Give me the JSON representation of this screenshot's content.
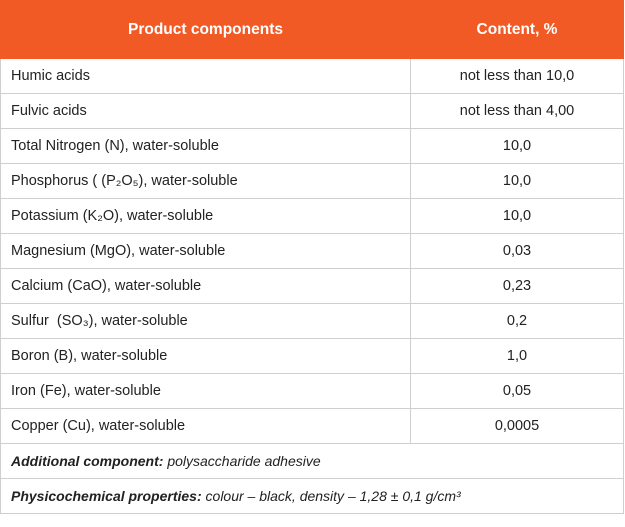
{
  "table": {
    "header": [
      "Product components",
      "Content, %"
    ],
    "rows": [
      [
        "Humic acids",
        "not less than 10,0"
      ],
      [
        "Fulvic acids",
        "not less than 4,00"
      ],
      [
        "Total Nitrogen (N), water-soluble",
        "10,0"
      ],
      [
        "Phosphorus ( (P₂O₅), water-soluble",
        "10,0"
      ],
      [
        "Potassium (K₂O), water-soluble",
        "10,0"
      ],
      [
        "Magnesium (MgO), water-soluble",
        "0,03"
      ],
      [
        "Calcium (CaO), water-soluble",
        "0,23"
      ],
      [
        "Sulfur  (SO₃), water-soluble",
        "0,2"
      ],
      [
        "Boron (B), water-soluble",
        "1,0"
      ],
      [
        "Iron (Fe), water-soluble",
        "0,05"
      ],
      [
        "Copper (Cu), water-soluble",
        "0,0005"
      ]
    ],
    "notes": [
      {
        "label": "Additional component:",
        "text": "polysaccharide adhesive"
      },
      {
        "label": "Physicochemical properties:",
        "text": "colour – black, density – 1,28 ± 0,1 g/cm³"
      }
    ]
  }
}
